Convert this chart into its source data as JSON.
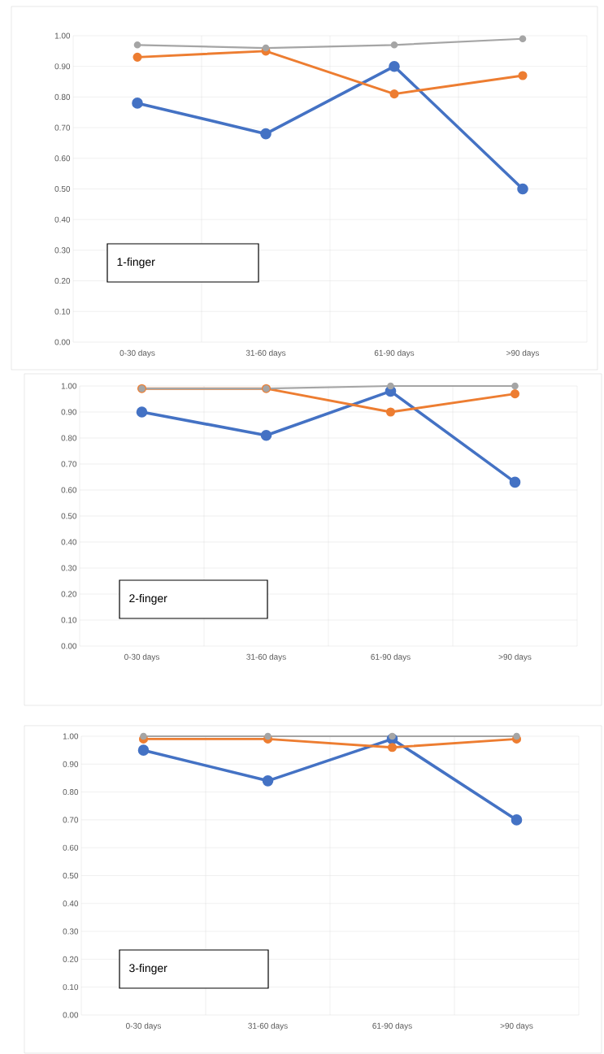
{
  "chart_data": [
    {
      "type": "line",
      "categories": [
        "0-30 days",
        "31-60 days",
        "61-90 days",
        ">90 days"
      ],
      "series": [
        {
          "color": "#4472c4",
          "values": [
            0.78,
            0.68,
            0.9,
            0.5
          ]
        },
        {
          "color": "#ed7d31",
          "values": [
            0.93,
            0.95,
            0.81,
            0.87
          ]
        },
        {
          "color": "#a5a5a5",
          "values": [
            0.97,
            0.96,
            0.97,
            0.99
          ]
        }
      ],
      "ylim": [
        0,
        1
      ],
      "yticks": [
        {
          "value": 0,
          "label": "0.00"
        },
        {
          "value": 0.1,
          "label": "0.10"
        },
        {
          "value": 0.2,
          "label": "0.20"
        },
        {
          "value": 0.3,
          "label": "0.30"
        },
        {
          "value": 0.4,
          "label": "0.40"
        },
        {
          "value": 0.5,
          "label": "0.50"
        },
        {
          "value": 0.6,
          "label": "0.60"
        },
        {
          "value": 0.7,
          "label": "0.70"
        },
        {
          "value": 0.8,
          "label": "0.80"
        },
        {
          "value": 0.9,
          "label": "0.90"
        },
        {
          "value": 1,
          "label": "1.00"
        }
      ],
      "grid": true,
      "marker": "circle",
      "line_style": "solid",
      "annotations": [
        "1-finger"
      ]
    },
    {
      "type": "line",
      "categories": [
        "0-30 days",
        "31-60 days",
        "61-90 days",
        ">90 days"
      ],
      "series": [
        {
          "color": "#4472c4",
          "values": [
            0.9,
            0.81,
            0.98,
            0.63
          ]
        },
        {
          "color": "#ed7d31",
          "values": [
            0.99,
            0.99,
            0.9,
            0.97
          ]
        },
        {
          "color": "#a5a5a5",
          "values": [
            0.99,
            0.99,
            1.0,
            1.0
          ]
        }
      ],
      "ylim": [
        0,
        1
      ],
      "yticks": [
        {
          "value": 0,
          "label": "0.00"
        },
        {
          "value": 0.1,
          "label": "0.10"
        },
        {
          "value": 0.2,
          "label": "0.20"
        },
        {
          "value": 0.3,
          "label": "0.30"
        },
        {
          "value": 0.4,
          "label": "0.40"
        },
        {
          "value": 0.5,
          "label": "0.50"
        },
        {
          "value": 0.6,
          "label": "0.60"
        },
        {
          "value": 0.7,
          "label": "0.70"
        },
        {
          "value": 0.8,
          "label": "0.80"
        },
        {
          "value": 0.9,
          "label": "0.90"
        },
        {
          "value": 1,
          "label": "1.00"
        }
      ],
      "grid": true,
      "marker": "circle",
      "line_style": "solid",
      "annotations": [
        "2-finger"
      ]
    },
    {
      "type": "line",
      "categories": [
        "0-30 days",
        "31-60 days",
        "61-90 days",
        ">90 days"
      ],
      "series": [
        {
          "color": "#4472c4",
          "values": [
            0.95,
            0.84,
            0.99,
            0.7
          ]
        },
        {
          "color": "#ed7d31",
          "values": [
            0.99,
            0.99,
            0.96,
            0.99
          ]
        },
        {
          "color": "#a5a5a5",
          "values": [
            1.0,
            1.0,
            1.0,
            1.0
          ]
        }
      ],
      "ylim": [
        0,
        1
      ],
      "yticks": [
        {
          "value": 0,
          "label": "0.00"
        },
        {
          "value": 0.1,
          "label": "0.10"
        },
        {
          "value": 0.2,
          "label": "0.20"
        },
        {
          "value": 0.3,
          "label": "0.30"
        },
        {
          "value": 0.4,
          "label": "0.40"
        },
        {
          "value": 0.5,
          "label": "0.50"
        },
        {
          "value": 0.6,
          "label": "0.60"
        },
        {
          "value": 0.7,
          "label": "0.70"
        },
        {
          "value": 0.8,
          "label": "0.80"
        },
        {
          "value": 0.9,
          "label": "0.90"
        },
        {
          "value": 1,
          "label": "1.00"
        }
      ],
      "grid": true,
      "marker": "circle",
      "line_style": "solid",
      "annotations": [
        "3-finger"
      ]
    }
  ]
}
